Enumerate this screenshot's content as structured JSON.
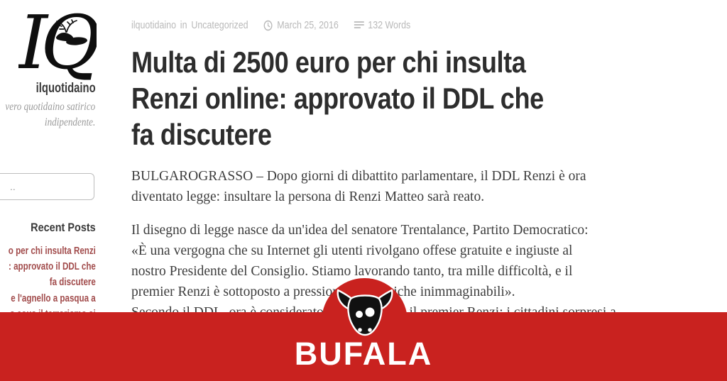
{
  "colors": {
    "banner_red": "#c9221f",
    "link_maroon": "#a14b4b",
    "title_dark": "#2d2d2d",
    "body_text": "#3d3d3d",
    "meta_gray": "#b9b9b9",
    "tagline_gray": "#9a9a9a"
  },
  "sidebar": {
    "logo_text": "IQ",
    "logo_icon": "deer-icon",
    "site_title": "ilquotidaino",
    "tagline_lines": [
      "vero quotidaino satirico",
      "indipendente."
    ],
    "search_placeholder": "..",
    "recent_posts_heading": "Recent Posts",
    "recent_posts": [
      {
        "lines": [
          "o per chi insulta Renzi",
          ": approvato il DDL che",
          "fa discutere"
        ]
      },
      {
        "lines": [
          "e l'agnello a pasqua a",
          "s cous il terrorismo si"
        ]
      }
    ]
  },
  "article": {
    "meta": {
      "author": "ilquotidaino",
      "in_label": "in",
      "category": "Uncategorized",
      "date": "March 25, 2016",
      "word_count": "132 Words",
      "clock_icon": "clock-icon",
      "words_icon": "word-count-icon"
    },
    "title_lines": [
      "Multa di 2500 euro per chi insulta",
      "Renzi online: approvato il DDL che",
      "fa discutere"
    ],
    "paragraph1_lines": [
      "BULGAROGRASSO – Dopo giorni di dibattito parlamentare, il DDL Renzi è ora",
      "diventato legge: insultare la persona di Renzi Matteo sarà reato."
    ],
    "paragraph2_lines": [
      "Il disegno di legge nasce da un'idea del senatore Trentalance, Partito Democratico:",
      "«È una vergogna che su Internet gli utenti rivolgano offese gratuite e ingiuste al",
      "nostro Presidente del Consiglio. Stiamo lavorando tanto, tra mille difficoltà, e il",
      "premier Renzi è sottoposto a pressioni psicologiche inimmaginabili».",
      "Secondo il DDL, ora è considerato reato insultare il premier Renzi: i cittadini sorpresi a"
    ]
  },
  "banner": {
    "label": "BUFALA",
    "bull_icon": "bull-icon"
  }
}
